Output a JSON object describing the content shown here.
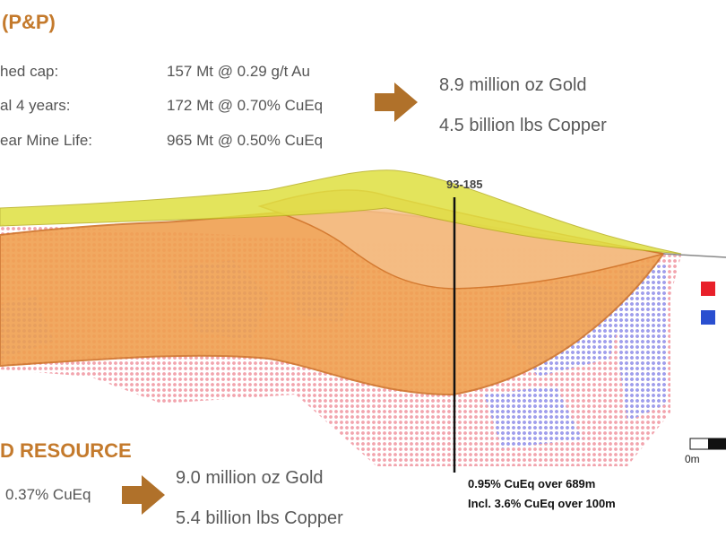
{
  "header": {
    "title": "(P&P)"
  },
  "reserves": {
    "rows": [
      {
        "label": "hed cap:",
        "value": "157 Mt @ 0.29 g/t Au"
      },
      {
        "label": "al 4 years:",
        "value": "172 Mt @ 0.70% CuEq"
      },
      {
        "label": "ear Mine Life:",
        "value": "965 Mt @ 0.50% CuEq"
      }
    ],
    "totals": [
      "8.9 million oz Gold",
      "4.5 billion lbs Copper"
    ]
  },
  "section": {
    "hole_id": "93-185",
    "intercepts": [
      "0.95% CuEq over 689m",
      "Incl. 3.6% CuEq over 100m"
    ],
    "scale_label": "0m"
  },
  "resource": {
    "title": "D RESOURCE",
    "grade": "0.37% CuEq",
    "totals": [
      "9.0 million oz Gold",
      "5.4 billion lbs Copper"
    ]
  }
}
